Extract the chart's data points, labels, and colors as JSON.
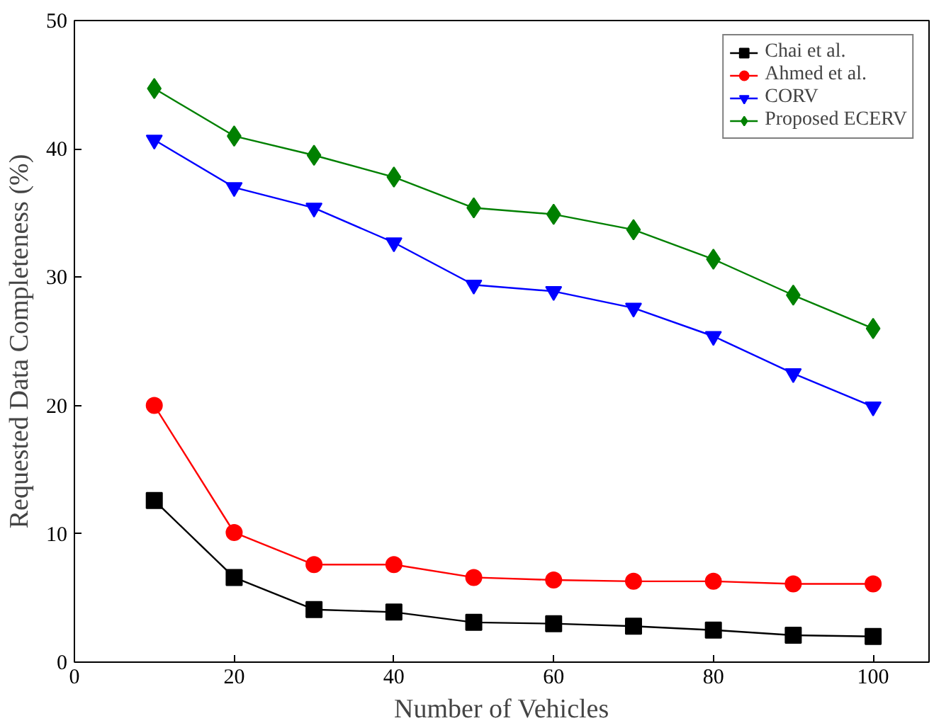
{
  "chart_data": {
    "type": "line",
    "xlabel": "Number of Vehicles",
    "ylabel": "Requested Data Completeness (%)",
    "x": [
      10,
      20,
      30,
      40,
      50,
      60,
      70,
      80,
      90,
      100
    ],
    "xlim": [
      0,
      107
    ],
    "xticks": [
      0,
      20,
      40,
      60,
      80,
      100
    ],
    "ylim": [
      0,
      50
    ],
    "yticks": [
      0,
      10,
      20,
      30,
      40,
      50
    ],
    "grid": false,
    "legend": "top right",
    "series": [
      {
        "name": "Chai et al.",
        "color": "#000000",
        "marker": "square",
        "values": [
          12.6,
          6.6,
          4.1,
          3.9,
          3.1,
          3.0,
          2.8,
          2.5,
          2.1,
          2.0
        ]
      },
      {
        "name": "Ahmed et al.",
        "color": "#ff0000",
        "marker": "circle",
        "values": [
          20.0,
          10.1,
          7.6,
          7.6,
          6.6,
          6.4,
          6.3,
          6.3,
          6.1,
          6.1
        ]
      },
      {
        "name": "CORV",
        "color": "#0000ff",
        "marker": "triangle",
        "values": [
          40.7,
          37.0,
          35.4,
          32.7,
          29.4,
          28.9,
          27.6,
          25.4,
          22.5,
          19.9
        ]
      },
      {
        "name": "Proposed ECERV",
        "color": "#008000",
        "marker": "diamond",
        "values": [
          44.7,
          41.0,
          39.5,
          37.8,
          35.4,
          34.9,
          33.7,
          31.4,
          28.6,
          26.0
        ]
      }
    ]
  }
}
